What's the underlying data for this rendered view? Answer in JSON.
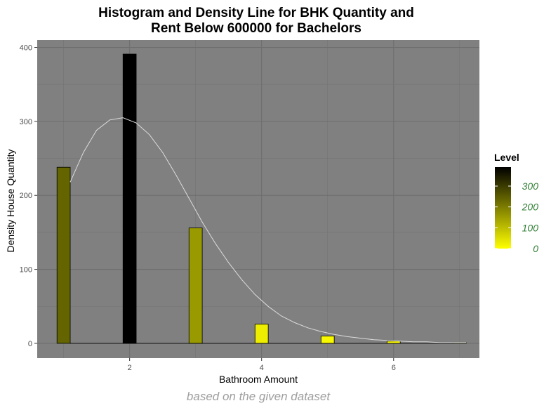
{
  "chart_data": {
    "type": "bar",
    "title_lines": [
      "Histogram and Density Line for BHK Quantity and",
      "Rent Below 600000 for Bachelors"
    ],
    "xlabel": "Bathroom Amount",
    "ylabel": "Density House Quantity",
    "caption": "based on the given dataset",
    "xlim": [
      0.6,
      7.3
    ],
    "ylim": [
      -20,
      410
    ],
    "x_ticks": [
      2,
      4,
      6
    ],
    "y_ticks": [
      0,
      100,
      200,
      300,
      400
    ],
    "bars": [
      {
        "x": 1,
        "value": 238
      },
      {
        "x": 2,
        "value": 391
      },
      {
        "x": 3,
        "value": 156
      },
      {
        "x": 4,
        "value": 26
      },
      {
        "x": 5,
        "value": 10
      },
      {
        "x": 6,
        "value": 3
      },
      {
        "x": 7,
        "value": 1
      }
    ],
    "density_line": {
      "x": [
        1.1,
        1.3,
        1.5,
        1.7,
        1.9,
        2.1,
        2.3,
        2.5,
        2.7,
        2.9,
        3.1,
        3.3,
        3.5,
        3.7,
        3.9,
        4.1,
        4.3,
        4.5,
        4.7,
        4.9,
        5.1,
        5.3,
        5.5,
        5.7,
        5.9,
        6.1,
        6.3,
        6.5,
        6.7,
        6.9,
        7.1
      ],
      "y": [
        218,
        258,
        288,
        302,
        305,
        298,
        282,
        258,
        228,
        196,
        164,
        135,
        109,
        86,
        66,
        50,
        37,
        28,
        21,
        16,
        12,
        9,
        7,
        5,
        4,
        3,
        2,
        2,
        1,
        1,
        1
      ],
      "color": "#dcdcdc"
    },
    "legend": {
      "title": "Level",
      "ticks": [
        0,
        100,
        200,
        300
      ],
      "range": [
        0,
        391
      ],
      "low_color": "#ffff00",
      "high_color": "#000000",
      "tick_color": "#2e7d32",
      "placement": "right"
    },
    "panel_background": "#808080",
    "grid": true
  }
}
